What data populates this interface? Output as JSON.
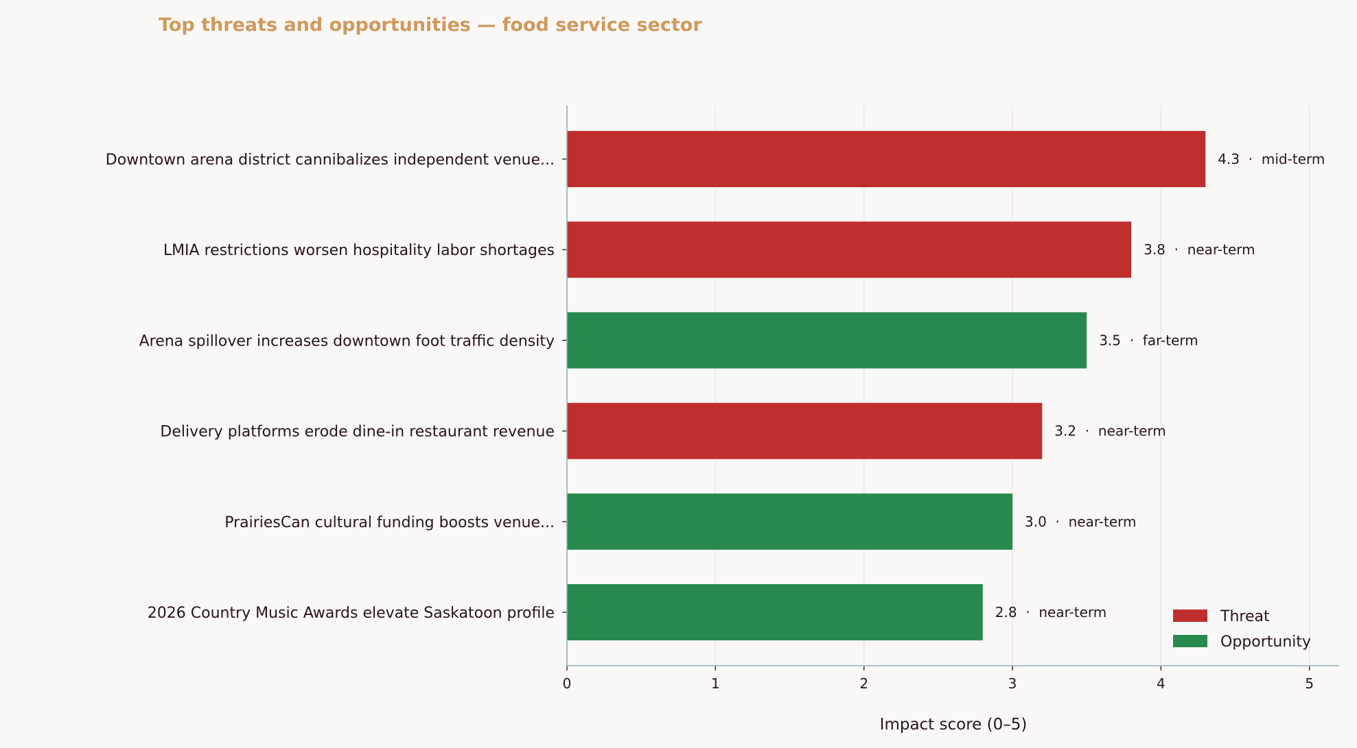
{
  "chart_data": {
    "type": "bar",
    "orientation": "horizontal",
    "title": "Top threats and opportunities — food service sector",
    "xlabel": "Impact score (0–5)",
    "ylabel": "",
    "xlim": [
      0,
      5.2
    ],
    "xticks": [
      0,
      1,
      2,
      3,
      4,
      5
    ],
    "grid": "vertical",
    "legend_position": "bottom-right",
    "colors": {
      "Threat": "#bf2e2e",
      "Opportunity": "#27894e"
    },
    "legend": [
      "Threat",
      "Opportunity"
    ],
    "bars": [
      {
        "label": "Downtown arena district cannibalizes independent venue...",
        "value": 4.3,
        "type": "Threat",
        "annotation": "4.3  ·  mid-term"
      },
      {
        "label": "LMIA restrictions worsen hospitality labor shortages",
        "value": 3.8,
        "type": "Threat",
        "annotation": "3.8  ·  near-term"
      },
      {
        "label": "Arena spillover increases downtown foot traffic density",
        "value": 3.5,
        "type": "Opportunity",
        "annotation": "3.5  ·  far-term"
      },
      {
        "label": "Delivery platforms erode dine-in restaurant revenue",
        "value": 3.2,
        "type": "Threat",
        "annotation": "3.2  ·  near-term"
      },
      {
        "label": "PrairiesCan cultural funding boosts venue...",
        "value": 3.0,
        "type": "Opportunity",
        "annotation": "3.0  ·  near-term"
      },
      {
        "label": "2026 Country Music Awards elevate Saskatoon profile",
        "value": 2.8,
        "type": "Opportunity",
        "annotation": "2.8  ·  near-term"
      }
    ]
  }
}
